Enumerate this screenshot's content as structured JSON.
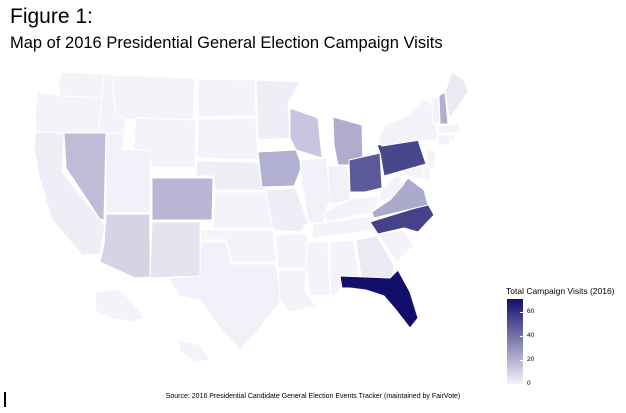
{
  "figure": {
    "label": "Figure 1:",
    "title": "Map of 2016 Presidential General Election Campaign Visits",
    "source": "Source: 2016 Presidential Candidate General Election Events Tracker (maintained by FairVote)"
  },
  "colors": {
    "low": "#f5f3fa",
    "high": "#120f6b",
    "state_border": "#ffffff"
  },
  "chart_data": {
    "type": "choropleth",
    "legend_title": "Total Campaign Visits (2016)",
    "legend_range": [
      0,
      71
    ],
    "legend_ticks": [
      "0",
      "20",
      "40",
      "60"
    ],
    "legend_tick_values": [
      0,
      20,
      40,
      60
    ],
    "legend_placement": "bottom-right",
    "states": [
      {
        "name": "Washington",
        "value": 0
      },
      {
        "name": "Oregon",
        "value": 0
      },
      {
        "name": "California",
        "value": 2
      },
      {
        "name": "Idaho",
        "value": 0
      },
      {
        "name": "Nevada",
        "value": 17
      },
      {
        "name": "Arizona",
        "value": 10
      },
      {
        "name": "Montana",
        "value": 0
      },
      {
        "name": "Wyoming",
        "value": 0
      },
      {
        "name": "Utah",
        "value": 1
      },
      {
        "name": "Colorado",
        "value": 19
      },
      {
        "name": "New Mexico",
        "value": 5
      },
      {
        "name": "North Dakota",
        "value": 0
      },
      {
        "name": "South Dakota",
        "value": 0
      },
      {
        "name": "Nebraska",
        "value": 2
      },
      {
        "name": "Kansas",
        "value": 0
      },
      {
        "name": "Oklahoma",
        "value": 0
      },
      {
        "name": "Texas",
        "value": 1
      },
      {
        "name": "Minnesota",
        "value": 2
      },
      {
        "name": "Iowa",
        "value": 21
      },
      {
        "name": "Missouri",
        "value": 2
      },
      {
        "name": "Arkansas",
        "value": 0
      },
      {
        "name": "Louisiana",
        "value": 0
      },
      {
        "name": "Wisconsin",
        "value": 14
      },
      {
        "name": "Illinois",
        "value": 1
      },
      {
        "name": "Michigan",
        "value": 22
      },
      {
        "name": "Indiana",
        "value": 1
      },
      {
        "name": "Ohio",
        "value": 48
      },
      {
        "name": "Kentucky",
        "value": 0
      },
      {
        "name": "Tennessee",
        "value": 0
      },
      {
        "name": "Mississippi",
        "value": 0
      },
      {
        "name": "Alabama",
        "value": 0
      },
      {
        "name": "Georgia",
        "value": 3
      },
      {
        "name": "Florida",
        "value": 71
      },
      {
        "name": "South Carolina",
        "value": 0
      },
      {
        "name": "North Carolina",
        "value": 55
      },
      {
        "name": "Virginia",
        "value": 23
      },
      {
        "name": "West Virginia",
        "value": 0
      },
      {
        "name": "Maryland",
        "value": 0
      },
      {
        "name": "Delaware",
        "value": 0
      },
      {
        "name": "Pennsylvania",
        "value": 54
      },
      {
        "name": "New Jersey",
        "value": 0
      },
      {
        "name": "New York",
        "value": 0
      },
      {
        "name": "Connecticut",
        "value": 0
      },
      {
        "name": "Rhode Island",
        "value": 0
      },
      {
        "name": "Massachusetts",
        "value": 0
      },
      {
        "name": "Vermont",
        "value": 0
      },
      {
        "name": "New Hampshire",
        "value": 21
      },
      {
        "name": "Maine",
        "value": 3
      }
    ]
  }
}
